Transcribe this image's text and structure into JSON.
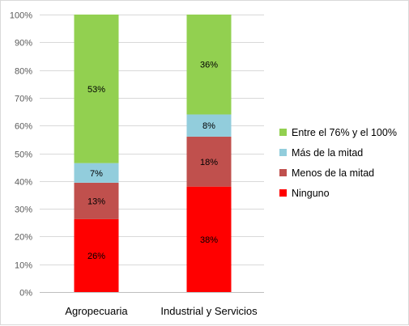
{
  "chart_data": {
    "type": "bar",
    "stacked": true,
    "percent_stacked": true,
    "categories": [
      "Agropecuaria",
      "Industrial y Servicios"
    ],
    "series": [
      {
        "name": "Ninguno",
        "values": [
          26,
          38
        ],
        "labels": [
          "26%",
          "38%"
        ],
        "color": "#ff0000"
      },
      {
        "name": "Menos de la mitad",
        "values": [
          13,
          18
        ],
        "labels": [
          "13%",
          "18%"
        ],
        "color": "#c0504d"
      },
      {
        "name": "Más de la mitad",
        "values": [
          7,
          8
        ],
        "labels": [
          "7%",
          "8%"
        ],
        "color": "#92cddc"
      },
      {
        "name": "Entre el 76% y el 100%",
        "values": [
          53,
          36
        ],
        "labels": [
          "53%",
          "36%"
        ],
        "color": "#92d050"
      }
    ],
    "ylim": [
      0,
      100
    ],
    "yticks": [
      "0%",
      "10%",
      "20%",
      "30%",
      "40%",
      "50%",
      "60%",
      "70%",
      "80%",
      "90%",
      "100%"
    ],
    "grid": true,
    "legend_position": "right",
    "legend_order": [
      "Entre el 76% y el 100%",
      "Más de la mitad",
      "Menos de la mitad",
      "Ninguno"
    ],
    "title": "",
    "xlabel": "",
    "ylabel": ""
  }
}
